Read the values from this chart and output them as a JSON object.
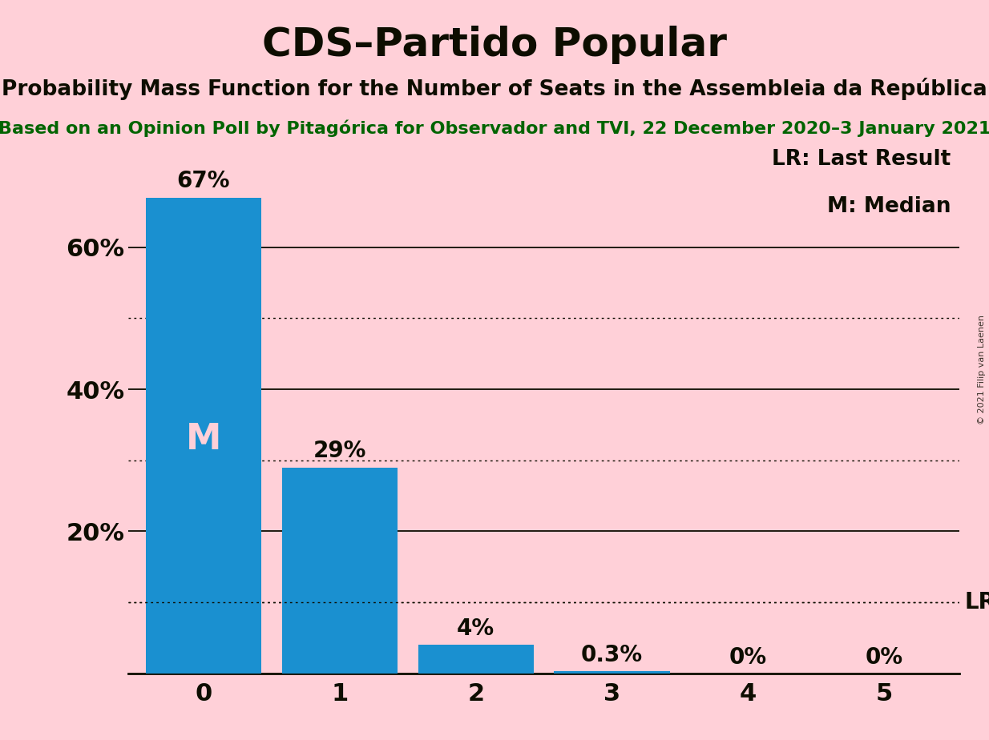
{
  "title": "CDS–Partido Popular",
  "subtitle": "Probability Mass Function for the Number of Seats in the Assembleia da República",
  "source_text": "Based on an Opinion Poll by Pitagórica for Observador and TVI, 22 December 2020–3 January 2021",
  "watermark": "© 2021 Filip van Laenen",
  "categories": [
    0,
    1,
    2,
    3,
    4,
    5
  ],
  "values": [
    0.67,
    0.29,
    0.04,
    0.003,
    0.0,
    0.0
  ],
  "value_labels": [
    "67%",
    "29%",
    "4%",
    "0.3%",
    "0%",
    "0%"
  ],
  "bar_color": "#1A90D0",
  "background_color": "#FFD0D8",
  "text_color": "#0D0D00",
  "green_color": "#006400",
  "white_color": "#FFD0D8",
  "median_seat": 0,
  "last_result_value": 0.1,
  "legend_lr": "LR: Last Result",
  "legend_m": "M: Median",
  "ylim": [
    0,
    0.75
  ],
  "yticks": [
    0.2,
    0.4,
    0.6
  ],
  "ytick_labels": [
    "20%",
    "40%",
    "60%"
  ],
  "solid_gridlines": [
    0.2,
    0.4,
    0.6
  ],
  "dotted_gridlines": [
    0.1,
    0.3,
    0.5
  ],
  "title_fontsize": 36,
  "subtitle_fontsize": 19,
  "source_fontsize": 16,
  "bar_label_fontsize": 20,
  "axis_label_fontsize": 22,
  "legend_fontsize": 19,
  "median_label_fontsize": 32
}
